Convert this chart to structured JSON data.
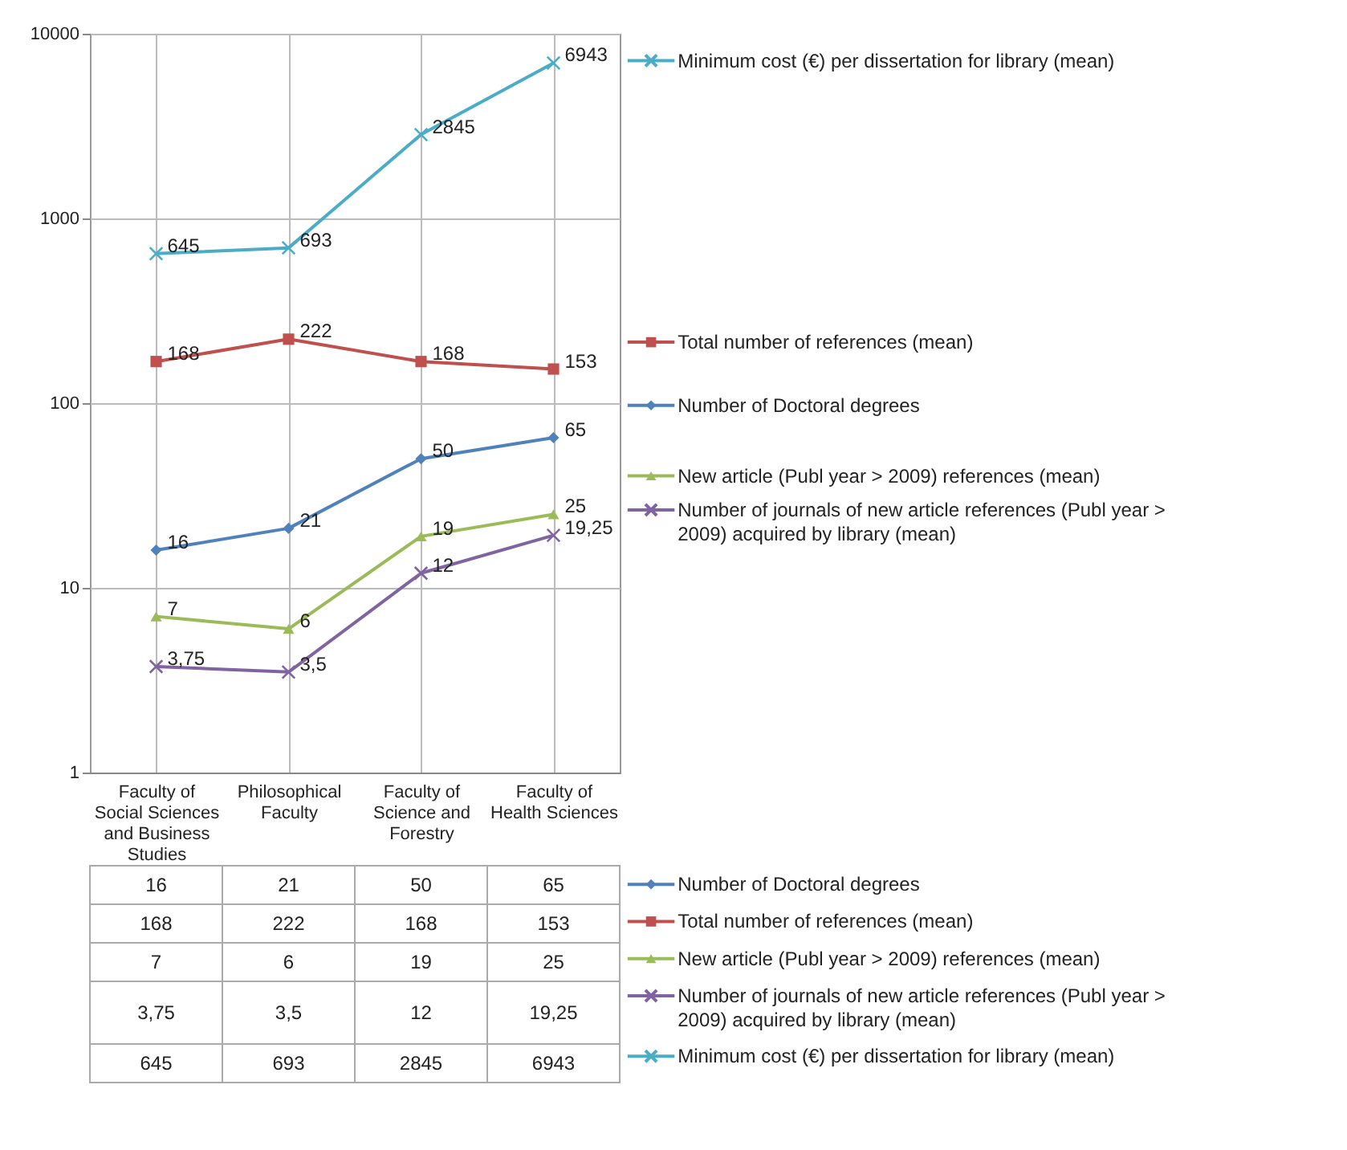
{
  "chart_data": {
    "type": "line",
    "categories": [
      "Faculty of Social Sciences and Business Studies",
      "Philosophical Faculty",
      "Faculty of Science and Forestry",
      "Faculty of Health Sciences"
    ],
    "series": [
      {
        "name": "Number of Doctoral degrees",
        "color": "#4f81bd",
        "marker": "diamond",
        "values": [
          16,
          21,
          50,
          65
        ],
        "value_labels": [
          "16",
          "21",
          "50",
          "65"
        ]
      },
      {
        "name": "Total number of references (mean)",
        "color": "#c0504d",
        "marker": "square",
        "values": [
          168,
          222,
          168,
          153
        ],
        "value_labels": [
          "168",
          "222",
          "168",
          "153"
        ]
      },
      {
        "name": "New article (Publ year > 2009) references (mean)",
        "color": "#9bbb59",
        "marker": "triangle",
        "values": [
          7,
          6,
          19,
          25
        ],
        "value_labels": [
          "7",
          "6",
          "19",
          "25"
        ]
      },
      {
        "name": "Number of journals of new article references (Publ year > 2009) acquired by library (mean)",
        "color": "#8064a2",
        "marker": "cross",
        "values": [
          3.75,
          3.5,
          12,
          19.25
        ],
        "value_labels": [
          "3,75",
          "3,5",
          "12",
          "19,25"
        ]
      },
      {
        "name": "Minimum cost (€) per dissertation for library (mean)",
        "color": "#4bacc6",
        "marker": "cross",
        "values": [
          645,
          693,
          2845,
          6943
        ],
        "value_labels": [
          "645",
          "693",
          "2845",
          "6943"
        ]
      }
    ],
    "log": "y",
    "ylim": [
      1,
      10000
    ],
    "yticks": [
      1,
      10,
      100,
      1000,
      10000
    ],
    "grid": true,
    "legend": "right",
    "line_style": "solid"
  }
}
